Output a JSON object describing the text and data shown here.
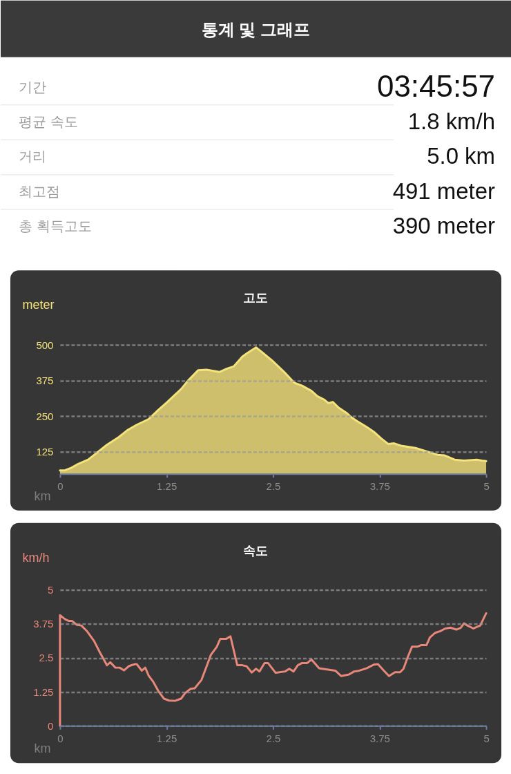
{
  "chart_data": [
    {
      "type": "other",
      "title": "통계 및 그래프",
      "categories": [
        "기간",
        "평균 속도",
        "거리",
        "최고점",
        "총 획득고도"
      ],
      "value_labels": [
        "03:45:57",
        "1.8 km/h",
        "5.0 km",
        "491 meter",
        "390 meter"
      ]
    },
    {
      "type": "area",
      "title": "고도",
      "xlabel": "km",
      "ylabel": "meter",
      "color": "#f4e27a",
      "xlim": [
        0,
        5
      ],
      "xticks": [
        0,
        1.25,
        2.5,
        3.75,
        5
      ],
      "ylim": [
        48,
        500
      ],
      "yticks": [
        125,
        250,
        375,
        500
      ],
      "grid": "y",
      "x": [
        0,
        0.06,
        0.13,
        0.2,
        0.33,
        0.42,
        0.55,
        0.69,
        0.79,
        0.9,
        1.04,
        1.15,
        1.26,
        1.42,
        1.5,
        1.62,
        1.72,
        1.8,
        1.87,
        1.96,
        2.04,
        2.14,
        2.2,
        2.3,
        2.36,
        2.49,
        2.63,
        2.75,
        2.84,
        2.95,
        3.02,
        3.1,
        3.15,
        3.2,
        3.27,
        3.37,
        3.42,
        3.49,
        3.6,
        3.68,
        3.77,
        3.85,
        3.92,
        4.0,
        4.08,
        4.17,
        4.3,
        4.43,
        4.51,
        4.63,
        4.74,
        4.89,
        4.95,
        5.0
      ],
      "values": [
        60,
        61,
        69,
        81,
        98,
        119,
        150,
        177,
        201,
        220,
        240,
        271,
        300,
        345,
        374,
        411,
        413,
        409,
        405,
        417,
        425,
        459,
        472,
        491,
        477,
        445,
        405,
        367,
        357,
        339,
        320,
        308,
        296,
        300,
        280,
        260,
        246,
        232,
        212,
        196,
        172,
        153,
        155,
        147,
        143,
        139,
        127,
        115,
        113,
        98,
        95,
        98,
        95,
        93
      ]
    },
    {
      "type": "line",
      "title": "속도",
      "xlabel": "km",
      "ylabel": "km/h",
      "color": "#e8887a",
      "xlim": [
        0,
        5
      ],
      "xticks": [
        0,
        1.25,
        2.5,
        3.75,
        5
      ],
      "ylim": [
        0,
        5
      ],
      "yticks": [
        0,
        1.25,
        2.5,
        3.75,
        5
      ],
      "grid": "y",
      "x": [
        0,
        0,
        0.06,
        0.1,
        0.14,
        0.2,
        0.25,
        0.32,
        0.4,
        0.47,
        0.55,
        0.59,
        0.65,
        0.7,
        0.75,
        0.81,
        0.88,
        0.9,
        0.96,
        1.0,
        1.04,
        1.09,
        1.16,
        1.22,
        1.28,
        1.35,
        1.42,
        1.47,
        1.53,
        1.58,
        1.66,
        1.72,
        1.77,
        1.84,
        1.88,
        1.95,
        2.0,
        2.08,
        2.14,
        2.19,
        2.25,
        2.3,
        2.34,
        2.4,
        2.44,
        2.53,
        2.64,
        2.69,
        2.74,
        2.79,
        2.84,
        2.9,
        2.95,
        3.04,
        3.12,
        3.23,
        3.3,
        3.39,
        3.45,
        3.5,
        3.6,
        3.68,
        3.73,
        3.8,
        3.86,
        3.93,
        3.99,
        4.03,
        4.08,
        4.13,
        4.19,
        4.24,
        4.3,
        4.34,
        4.4,
        4.46,
        4.52,
        4.58,
        4.65,
        4.7,
        4.74,
        4.78,
        4.85,
        4.93,
        5.0
      ],
      "values": [
        0,
        4.07,
        3.92,
        3.86,
        3.86,
        3.71,
        3.69,
        3.47,
        3.12,
        2.69,
        2.23,
        2.34,
        2.14,
        2.14,
        2.04,
        2.2,
        2.27,
        2.27,
        2.03,
        2.14,
        1.85,
        1.64,
        1.25,
        1.0,
        0.93,
        0.92,
        1.0,
        1.21,
        1.36,
        1.38,
        1.69,
        2.19,
        2.61,
        2.91,
        3.2,
        3.2,
        3.29,
        2.23,
        2.23,
        2.19,
        1.96,
        2.1,
        2.0,
        2.31,
        2.31,
        1.95,
        2.0,
        2.1,
        2.0,
        2.23,
        2.31,
        2.31,
        2.44,
        2.12,
        2.08,
        2.03,
        1.83,
        1.89,
        2.0,
        2.02,
        2.12,
        2.25,
        2.27,
        2.03,
        1.83,
        1.97,
        1.97,
        2.1,
        2.53,
        2.91,
        2.91,
        2.97,
        2.97,
        3.25,
        3.42,
        3.48,
        3.58,
        3.61,
        3.54,
        3.6,
        3.77,
        3.69,
        3.58,
        3.69,
        4.14
      ]
    }
  ]
}
